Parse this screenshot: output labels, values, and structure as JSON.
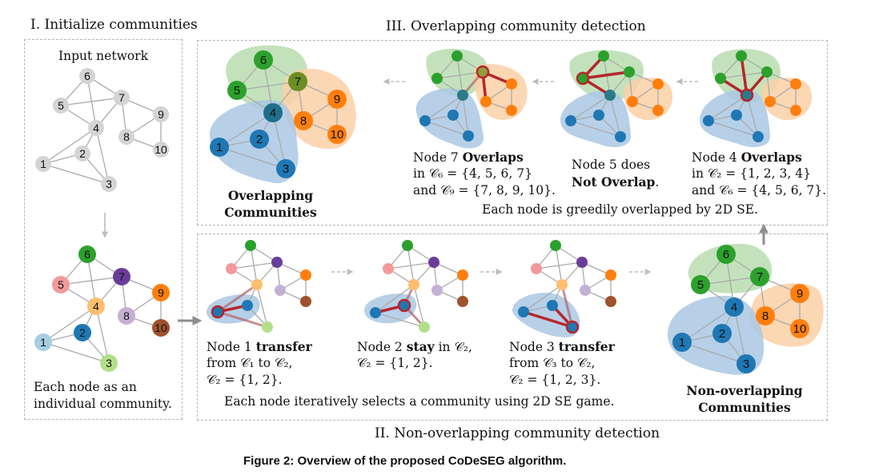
{
  "section1": {
    "title": "I. Initialize communities",
    "input_label": "Input network",
    "note_line1": "Each node as an",
    "note_line2": "individual community."
  },
  "section2": {
    "title": "II. Non-overlapping community detection",
    "note": "Each node iteratively selects a community using 2D SE game.",
    "step1": {
      "pre": "Node 1 ",
      "bold": "transfer",
      "line2": "from 𝒞₁ to 𝒞₂,",
      "line3": "𝒞₂ = {1, 2}."
    },
    "step2": {
      "pre": "Node 2 ",
      "bold": "stay",
      "post": " in 𝒞₂,",
      "line2": "𝒞₂ = {1, 2}."
    },
    "step3": {
      "pre": "Node 3 ",
      "bold": "transfer",
      "line2": "from 𝒞₃ to 𝒞₂,",
      "line3": "𝒞₂ = {1, 2, 3}."
    },
    "result_line1": "Non-overlapping",
    "result_line2": "Communities"
  },
  "section3": {
    "title": "III. Overlapping community detection",
    "note": "Each node is greedily overlapped by 2D SE.",
    "step7": {
      "pre": "Node 7 ",
      "bold": "Overlaps",
      "line2": "in 𝒞₆ = {4, 5, 6, 7}",
      "line3": "and 𝒞₉ = {7, 8, 9, 10}."
    },
    "step5": {
      "line1": "Node 5 does",
      "bold": "Not Overlap",
      "post": "."
    },
    "step4": {
      "pre": "Node 4 ",
      "bold": "Overlaps",
      "line2": "in 𝒞₂ = {1, 2, 3, 4}",
      "line3": "and 𝒞₆ = {4, 5, 6, 7}."
    },
    "result_line1": "Overlapping",
    "result_line2": "Communities"
  },
  "caption": "Figure 2: Overview of the proposed CoDeSEG algorithm.",
  "node_labels": [
    "1",
    "2",
    "3",
    "4",
    "5",
    "6",
    "7",
    "8",
    "9",
    "10"
  ],
  "colors": {
    "gray_node": "#d4d4d4",
    "blue_node": "#1f77b4",
    "green_node": "#2ca02c",
    "orange_node": "#ff7f0e",
    "pink_node": "#f4999a",
    "purple_node": "#6a3d9a",
    "lilac_node": "#c5b0d5",
    "brown_node": "#a0522d",
    "light_orange_node": "#fdbf6f",
    "light_blue_node": "#a6cee3",
    "light_green_node": "#b2df8a",
    "edge": "#aaaaaa",
    "highlight_edge": "#b5272d",
    "blue_region": "#aac8e4",
    "green_region": "#b8ddb0",
    "orange_region": "#fbd0a6",
    "arrow": "#8e8e8e",
    "dashed_arrow": "#bdbdbd"
  }
}
